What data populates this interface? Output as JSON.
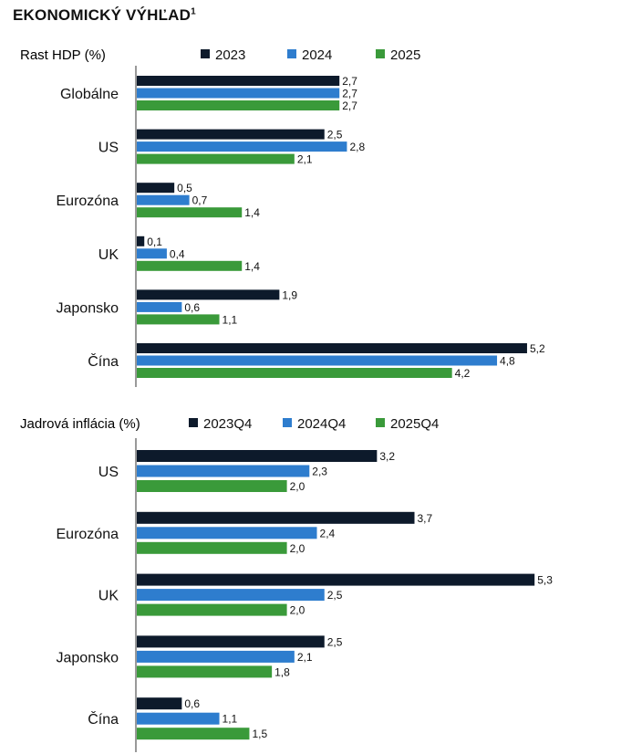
{
  "title": "EKONOMICKÝ VÝHĽAD",
  "title_footnote": "1",
  "chart_data": [
    {
      "type": "bar",
      "orientation": "horizontal",
      "title": "Rast HDP (%)",
      "categories": [
        "Globálne",
        "US",
        "Eurozóna",
        "UK",
        "Japonsko",
        "Čína"
      ],
      "series": [
        {
          "name": "2023",
          "color": "#0d1a2b",
          "values": [
            2.7,
            2.5,
            0.5,
            0.1,
            1.9,
            5.2
          ]
        },
        {
          "name": "2024",
          "color": "#2e7dce",
          "values": [
            2.7,
            2.8,
            0.7,
            0.4,
            0.6,
            4.8
          ]
        },
        {
          "name": "2025",
          "color": "#3a9a3a",
          "values": [
            2.7,
            2.1,
            1.4,
            1.4,
            1.1,
            4.2
          ]
        }
      ],
      "value_labels": [
        [
          "2,7",
          "2,5",
          "0,5",
          "0,1",
          "1,9",
          "5,2"
        ],
        [
          "2,7",
          "2,8",
          "0,7",
          "0,4",
          "0,6",
          "4,8"
        ],
        [
          "2,7",
          "2,1",
          "1,4",
          "1,4",
          "1,1",
          "4,2"
        ]
      ],
      "legend_position": "top"
    },
    {
      "type": "bar",
      "orientation": "horizontal",
      "title": "Jadrová inflácia (%)",
      "categories": [
        "US",
        "Eurozóna",
        "UK",
        "Japonsko",
        "Čína"
      ],
      "series": [
        {
          "name": "2023Q4",
          "color": "#0d1a2b",
          "values": [
            3.2,
            3.7,
            5.3,
            2.5,
            0.6
          ]
        },
        {
          "name": "2024Q4",
          "color": "#2e7dce",
          "values": [
            2.3,
            2.4,
            2.5,
            2.1,
            1.1
          ]
        },
        {
          "name": "2025Q4",
          "color": "#3a9a3a",
          "values": [
            2.0,
            2.0,
            2.0,
            1.8,
            1.5
          ]
        }
      ],
      "value_labels": [
        [
          "3,2",
          "3,7",
          "5,3",
          "2,5",
          "0,6"
        ],
        [
          "2,3",
          "2,4",
          "2,5",
          "2,1",
          "1,1"
        ],
        [
          "2,0",
          "2,0",
          "2,0",
          "1,8",
          "1,5"
        ]
      ],
      "legend_position": "top"
    }
  ]
}
